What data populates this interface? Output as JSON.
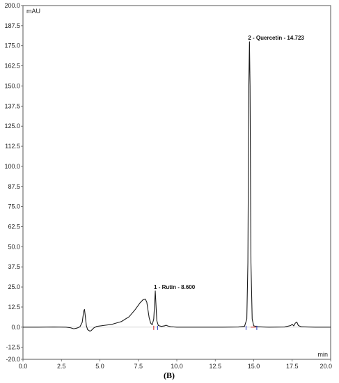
{
  "chart_data": {
    "type": "line",
    "title": "",
    "xlabel": "min",
    "ylabel": "mAU",
    "caption": "(B)",
    "xlim": [
      0.0,
      20.0
    ],
    "ylim": [
      -20.0,
      200.0
    ],
    "x_ticks": [
      "0.0",
      "2.5",
      "5.0",
      "7.5",
      "10.0",
      "12.5",
      "15.0",
      "17.5",
      "20.0"
    ],
    "y_ticks": [
      "200.0",
      "187.5",
      "175.0",
      "162.5",
      "150.0",
      "137.5",
      "125.0",
      "112.5",
      "100.0",
      "87.5",
      "75.0",
      "62.5",
      "50.0",
      "37.5",
      "25.0",
      "12.5",
      "0.0",
      "-12.5",
      "-20.0"
    ],
    "grid": false,
    "annotations": [
      {
        "label": "1 - Rutin - 8.600",
        "x": 8.6,
        "y": 22.5
      },
      {
        "label": "2 - Quercetin - 14.723",
        "x": 14.723,
        "y": 177.5
      }
    ],
    "series": [
      {
        "color": "#1a1a1a",
        "x": [
          0.0,
          1.0,
          2.0,
          2.8,
          3.1,
          3.3,
          3.5,
          3.7,
          3.85,
          3.95,
          4.0,
          4.05,
          4.12,
          4.2,
          4.35,
          4.45,
          4.6,
          4.8,
          5.2,
          5.8,
          6.4,
          6.9,
          7.3,
          7.6,
          7.8,
          7.95,
          8.05,
          8.12,
          8.2,
          8.3,
          8.4,
          8.5,
          8.56,
          8.6,
          8.64,
          8.7,
          8.8,
          9.0,
          9.2,
          9.3,
          9.4,
          9.6,
          10.0,
          11.0,
          12.0,
          13.0,
          14.0,
          14.4,
          14.55,
          14.62,
          14.68,
          14.723,
          14.76,
          14.82,
          14.9,
          15.0,
          15.3,
          16.0,
          17.0,
          17.4,
          17.5,
          17.6,
          17.7,
          17.8,
          17.9,
          18.1,
          19.0,
          20.0
        ],
        "y": [
          0.0,
          0.0,
          0.1,
          0.0,
          -0.4,
          -1.0,
          -0.6,
          0.2,
          3.0,
          10.0,
          11.0,
          7.0,
          1.0,
          -1.5,
          -2.5,
          -2.0,
          -0.5,
          0.5,
          1.0,
          1.8,
          3.5,
          6.5,
          11.0,
          15.0,
          17.0,
          17.5,
          15.5,
          11.0,
          6.0,
          2.5,
          1.5,
          5.0,
          15.0,
          22.5,
          15.0,
          4.0,
          1.0,
          0.5,
          0.8,
          1.2,
          0.8,
          0.3,
          0.0,
          0.0,
          0.0,
          0.0,
          0.1,
          0.5,
          5.0,
          40.0,
          150.0,
          177.5,
          150.0,
          40.0,
          5.0,
          0.8,
          0.2,
          0.0,
          0.1,
          1.0,
          1.8,
          0.8,
          2.5,
          3.2,
          1.0,
          0.2,
          0.0,
          0.0
        ]
      }
    ]
  }
}
